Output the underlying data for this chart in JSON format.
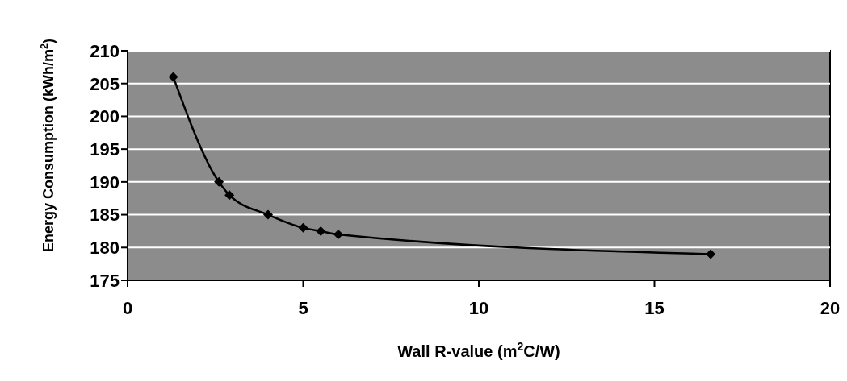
{
  "chart_data": {
    "type": "line",
    "xlabel": "Wall R-value (m$^{2}$C/W)",
    "ylabel": "Energy Consumption (kWh/m$^{2}$)",
    "x": [
      1.3,
      2.6,
      2.9,
      4,
      5,
      5.5,
      6,
      16.6
    ],
    "series": [
      {
        "color": "#000000",
        "values": [
          206,
          190,
          188,
          185,
          183,
          182.5,
          182,
          179
        ]
      }
    ],
    "xlim": [
      0,
      20
    ],
    "xticks": [
      0,
      5,
      10,
      15,
      20
    ],
    "ylim": [
      175,
      210
    ],
    "yticks": [
      175,
      180,
      185,
      190,
      195,
      200,
      205,
      210
    ],
    "grid": "y",
    "legend": false,
    "marker": "diamond",
    "line_style": "solid"
  }
}
